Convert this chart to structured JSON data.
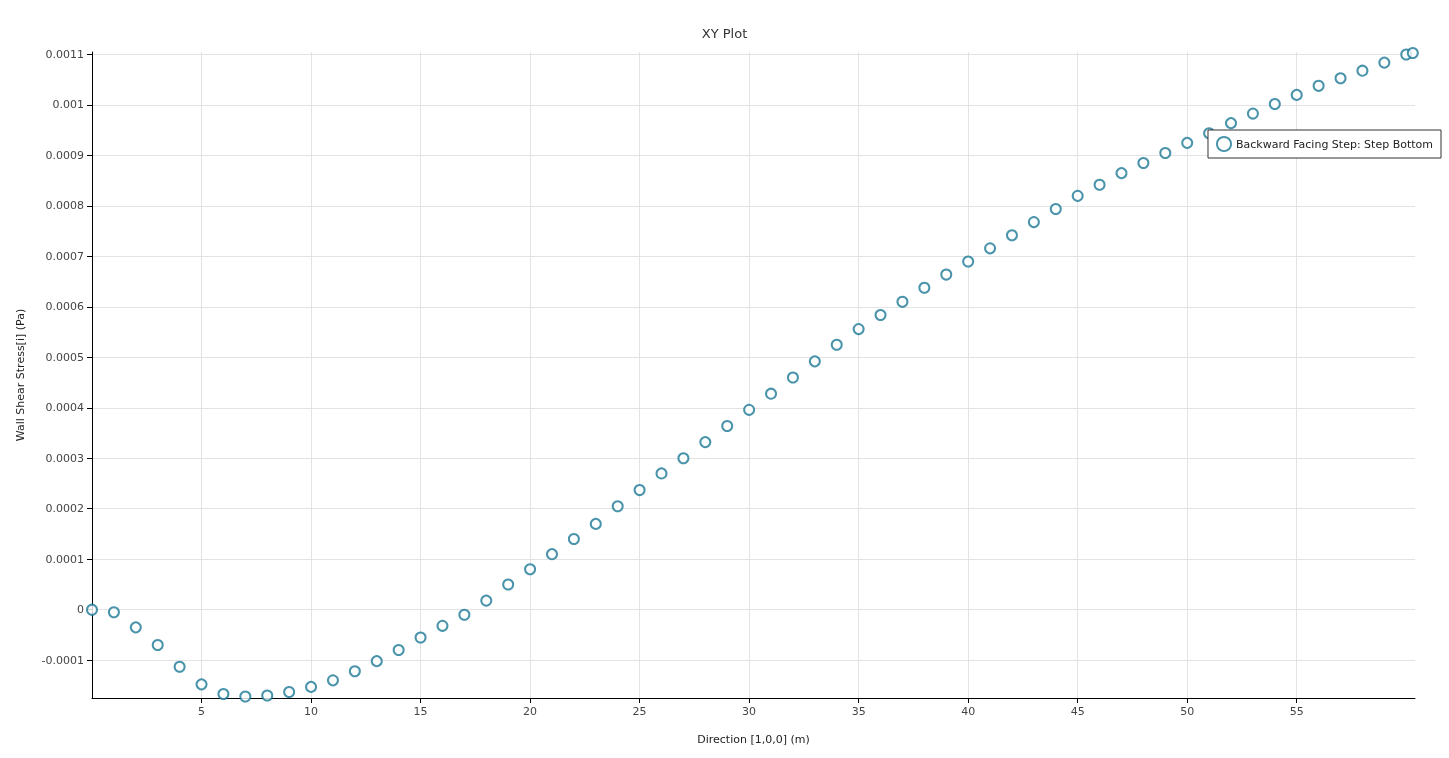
{
  "chart_data": {
    "type": "scatter",
    "title": "XY Plot",
    "xlabel": "Direction [1,0,0] (m)",
    "ylabel": "Wall Shear Stress[i] (Pa)",
    "x": [
      0,
      1,
      2,
      3,
      4,
      5,
      6,
      7,
      8,
      9,
      10,
      11,
      12,
      13,
      14,
      15,
      16,
      17,
      18,
      19,
      20,
      21,
      22,
      23,
      24,
      25,
      26,
      27,
      28,
      29,
      30,
      31,
      32,
      33,
      34,
      35,
      36,
      37,
      38,
      39,
      40,
      41,
      42,
      43,
      44,
      45,
      46,
      47,
      48,
      49,
      50,
      51,
      52,
      53,
      54,
      55,
      56,
      57,
      58,
      59,
      60,
      60.3
    ],
    "series": [
      {
        "name": "Backward Facing Step: Step Bottom",
        "color": "#1b7896",
        "values": [
          0,
          -5e-06,
          -3.5e-05,
          -7e-05,
          -0.000113,
          -0.000148,
          -0.000167,
          -0.000172,
          -0.00017,
          -0.000163,
          -0.000153,
          -0.00014,
          -0.000122,
          -0.000102,
          -8e-05,
          -5.5e-05,
          -3.2e-05,
          -1e-05,
          1.8e-05,
          5e-05,
          8e-05,
          0.00011,
          0.00014,
          0.00017,
          0.000205,
          0.000237,
          0.00027,
          0.0003,
          0.000332,
          0.000364,
          0.000396,
          0.000428,
          0.00046,
          0.000492,
          0.000525,
          0.000556,
          0.000584,
          0.00061,
          0.000638,
          0.000664,
          0.00069,
          0.000716,
          0.000742,
          0.000768,
          0.000794,
          0.00082,
          0.000842,
          0.000865,
          0.000885,
          0.000905,
          0.000925,
          0.000944,
          0.000964,
          0.000983,
          0.001002,
          0.00102,
          0.001038,
          0.001053,
          0.001068,
          0.001084,
          0.0011,
          0.001103
        ]
      }
    ],
    "xlim": [
      0,
      60.4
    ],
    "xticks": [
      5,
      10,
      15,
      20,
      25,
      30,
      35,
      40,
      45,
      50,
      55
    ],
    "ylim": [
      -0.000175,
      0.001105
    ],
    "yticks": [
      -0.0001,
      0,
      0.0001,
      0.0002,
      0.0003,
      0.0004,
      0.0005,
      0.0006,
      0.0007,
      0.0008,
      0.0009,
      0.001,
      0.0011
    ],
    "grid": true,
    "legend": "top right",
    "marker": "circle"
  }
}
